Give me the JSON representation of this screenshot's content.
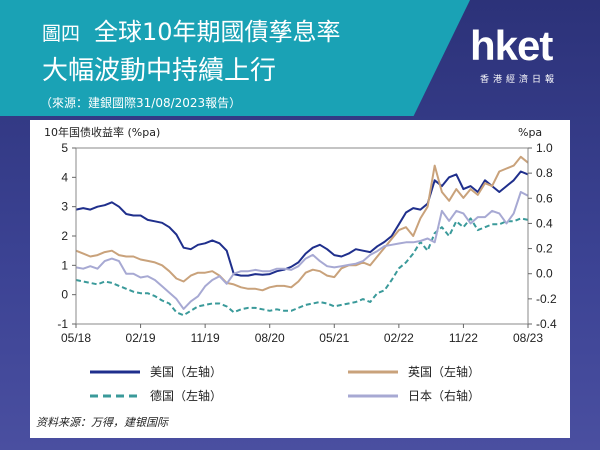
{
  "header": {
    "tag": "圖四",
    "title_line1": "全球10年期國債孳息率",
    "title_line2": "大幅波動中持續上行",
    "source": "（來源：建銀國際31/08/2023報告）"
  },
  "logo": {
    "name": "hket",
    "sub": "香港經濟日報"
  },
  "colors": {
    "us": "#1f2f8c",
    "uk": "#c9a27b",
    "de": "#3a9a9a",
    "jp": "#a7a9d3",
    "banner": "#1aa2b5"
  },
  "chart_data": {
    "type": "line",
    "title": "10年国债收益率 (%pa)",
    "right_axis_title": "%pa",
    "x_ticks": [
      "05/18",
      "02/19",
      "11/19",
      "08/20",
      "05/21",
      "02/22",
      "11/22",
      "08/23"
    ],
    "left_ylim": [
      -1,
      5
    ],
    "left_ticks": [
      "5",
      "4",
      "3",
      "2",
      "1",
      "0",
      "-1"
    ],
    "right_ylim": [
      -0.4,
      1.0
    ],
    "right_ticks": [
      "1.0",
      "0.8",
      "0.6",
      "0.4",
      "0.2",
      "0.0",
      "-0.2",
      "-0.4"
    ],
    "x_range": [
      0,
      63
    ],
    "series": [
      {
        "name": "美国（左轴）",
        "axis": "left",
        "color_key": "us",
        "dash": false,
        "points": [
          [
            0,
            2.9
          ],
          [
            1,
            2.95
          ],
          [
            2,
            2.9
          ],
          [
            3,
            3.0
          ],
          [
            4,
            3.05
          ],
          [
            5,
            3.15
          ],
          [
            6,
            3.0
          ],
          [
            7,
            2.75
          ],
          [
            8,
            2.7
          ],
          [
            9,
            2.7
          ],
          [
            10,
            2.55
          ],
          [
            11,
            2.5
          ],
          [
            12,
            2.45
          ],
          [
            13,
            2.3
          ],
          [
            14,
            2.05
          ],
          [
            15,
            1.6
          ],
          [
            16,
            1.55
          ],
          [
            17,
            1.7
          ],
          [
            18,
            1.75
          ],
          [
            19,
            1.85
          ],
          [
            20,
            1.75
          ],
          [
            21,
            1.5
          ],
          [
            22,
            0.7
          ],
          [
            23,
            0.65
          ],
          [
            24,
            0.65
          ],
          [
            25,
            0.7
          ],
          [
            26,
            0.68
          ],
          [
            27,
            0.7
          ],
          [
            28,
            0.8
          ],
          [
            29,
            0.85
          ],
          [
            30,
            0.95
          ],
          [
            31,
            1.1
          ],
          [
            32,
            1.4
          ],
          [
            33,
            1.6
          ],
          [
            34,
            1.7
          ],
          [
            35,
            1.55
          ],
          [
            36,
            1.35
          ],
          [
            37,
            1.3
          ],
          [
            38,
            1.4
          ],
          [
            39,
            1.55
          ],
          [
            40,
            1.5
          ],
          [
            41,
            1.45
          ],
          [
            42,
            1.65
          ],
          [
            43,
            1.8
          ],
          [
            44,
            2.0
          ],
          [
            45,
            2.4
          ],
          [
            46,
            2.8
          ],
          [
            47,
            2.95
          ],
          [
            48,
            2.9
          ],
          [
            49,
            3.1
          ],
          [
            50,
            3.9
          ],
          [
            51,
            3.7
          ],
          [
            52,
            4.0
          ],
          [
            53,
            4.1
          ],
          [
            54,
            3.6
          ],
          [
            55,
            3.7
          ],
          [
            56,
            3.5
          ],
          [
            57,
            3.9
          ],
          [
            58,
            3.7
          ],
          [
            59,
            3.5
          ],
          [
            60,
            3.7
          ],
          [
            61,
            3.9
          ],
          [
            62,
            4.2
          ],
          [
            63,
            4.1
          ]
        ]
      },
      {
        "name": "英国（左轴）",
        "axis": "left",
        "color_key": "uk",
        "dash": false,
        "points": [
          [
            0,
            1.5
          ],
          [
            1,
            1.4
          ],
          [
            2,
            1.3
          ],
          [
            3,
            1.35
          ],
          [
            4,
            1.45
          ],
          [
            5,
            1.5
          ],
          [
            6,
            1.35
          ],
          [
            7,
            1.3
          ],
          [
            8,
            1.3
          ],
          [
            9,
            1.2
          ],
          [
            10,
            1.15
          ],
          [
            11,
            1.1
          ],
          [
            12,
            1.0
          ],
          [
            13,
            0.8
          ],
          [
            14,
            0.55
          ],
          [
            15,
            0.45
          ],
          [
            16,
            0.65
          ],
          [
            17,
            0.75
          ],
          [
            18,
            0.75
          ],
          [
            19,
            0.8
          ],
          [
            20,
            0.65
          ],
          [
            21,
            0.4
          ],
          [
            22,
            0.35
          ],
          [
            23,
            0.25
          ],
          [
            24,
            0.2
          ],
          [
            25,
            0.2
          ],
          [
            26,
            0.15
          ],
          [
            27,
            0.25
          ],
          [
            28,
            0.3
          ],
          [
            29,
            0.3
          ],
          [
            30,
            0.25
          ],
          [
            31,
            0.45
          ],
          [
            32,
            0.75
          ],
          [
            33,
            0.85
          ],
          [
            34,
            0.8
          ],
          [
            35,
            0.65
          ],
          [
            36,
            0.6
          ],
          [
            37,
            0.9
          ],
          [
            38,
            1.0
          ],
          [
            39,
            1.0
          ],
          [
            40,
            1.1
          ],
          [
            41,
            1.0
          ],
          [
            42,
            1.3
          ],
          [
            43,
            1.6
          ],
          [
            44,
            1.9
          ],
          [
            45,
            2.2
          ],
          [
            46,
            2.3
          ],
          [
            47,
            2.0
          ],
          [
            48,
            2.6
          ],
          [
            49,
            3.0
          ],
          [
            50,
            4.4
          ],
          [
            51,
            3.5
          ],
          [
            52,
            3.2
          ],
          [
            53,
            3.6
          ],
          [
            54,
            3.3
          ],
          [
            55,
            3.6
          ],
          [
            56,
            3.4
          ],
          [
            57,
            3.8
          ],
          [
            58,
            3.7
          ],
          [
            59,
            4.2
          ],
          [
            60,
            4.3
          ],
          [
            61,
            4.4
          ],
          [
            62,
            4.7
          ],
          [
            63,
            4.5
          ]
        ]
      },
      {
        "name": "德国（左轴）",
        "axis": "left",
        "color_key": "de",
        "dash": true,
        "points": [
          [
            0,
            0.5
          ],
          [
            1,
            0.45
          ],
          [
            2,
            0.4
          ],
          [
            3,
            0.35
          ],
          [
            4,
            0.45
          ],
          [
            5,
            0.4
          ],
          [
            6,
            0.3
          ],
          [
            7,
            0.2
          ],
          [
            8,
            0.1
          ],
          [
            9,
            0.05
          ],
          [
            10,
            0.05
          ],
          [
            11,
            -0.05
          ],
          [
            12,
            -0.2
          ],
          [
            13,
            -0.3
          ],
          [
            14,
            -0.6
          ],
          [
            15,
            -0.7
          ],
          [
            16,
            -0.55
          ],
          [
            17,
            -0.4
          ],
          [
            18,
            -0.35
          ],
          [
            19,
            -0.3
          ],
          [
            20,
            -0.3
          ],
          [
            21,
            -0.4
          ],
          [
            22,
            -0.6
          ],
          [
            23,
            -0.5
          ],
          [
            24,
            -0.45
          ],
          [
            25,
            -0.45
          ],
          [
            26,
            -0.5
          ],
          [
            27,
            -0.55
          ],
          [
            28,
            -0.5
          ],
          [
            29,
            -0.55
          ],
          [
            30,
            -0.55
          ],
          [
            31,
            -0.45
          ],
          [
            32,
            -0.35
          ],
          [
            33,
            -0.3
          ],
          [
            34,
            -0.25
          ],
          [
            35,
            -0.3
          ],
          [
            36,
            -0.4
          ],
          [
            37,
            -0.35
          ],
          [
            38,
            -0.3
          ],
          [
            39,
            -0.25
          ],
          [
            40,
            -0.15
          ],
          [
            41,
            -0.25
          ],
          [
            42,
            0.05
          ],
          [
            43,
            0.15
          ],
          [
            44,
            0.5
          ],
          [
            45,
            0.9
          ],
          [
            46,
            1.1
          ],
          [
            47,
            1.4
          ],
          [
            48,
            1.8
          ],
          [
            49,
            1.5
          ],
          [
            50,
            2.1
          ],
          [
            51,
            2.3
          ],
          [
            52,
            2.0
          ],
          [
            53,
            2.5
          ],
          [
            54,
            2.3
          ],
          [
            55,
            2.6
          ],
          [
            56,
            2.2
          ],
          [
            57,
            2.3
          ],
          [
            58,
            2.4
          ],
          [
            59,
            2.4
          ],
          [
            60,
            2.5
          ],
          [
            61,
            2.5
          ],
          [
            62,
            2.6
          ],
          [
            63,
            2.55
          ]
        ]
      },
      {
        "name": "日本（右轴）",
        "axis": "right",
        "color_key": "jp",
        "dash": false,
        "points": [
          [
            0,
            0.05
          ],
          [
            1,
            0.04
          ],
          [
            2,
            0.06
          ],
          [
            3,
            0.04
          ],
          [
            4,
            0.1
          ],
          [
            5,
            0.12
          ],
          [
            6,
            0.1
          ],
          [
            7,
            0.0
          ],
          [
            8,
            0.0
          ],
          [
            9,
            -0.03
          ],
          [
            10,
            -0.02
          ],
          [
            11,
            -0.05
          ],
          [
            12,
            -0.1
          ],
          [
            13,
            -0.15
          ],
          [
            14,
            -0.2
          ],
          [
            15,
            -0.28
          ],
          [
            16,
            -0.22
          ],
          [
            17,
            -0.18
          ],
          [
            18,
            -0.1
          ],
          [
            19,
            -0.05
          ],
          [
            20,
            -0.02
          ],
          [
            21,
            -0.08
          ],
          [
            22,
            0.0
          ],
          [
            23,
            0.02
          ],
          [
            24,
            0.02
          ],
          [
            25,
            0.03
          ],
          [
            26,
            0.02
          ],
          [
            27,
            0.02
          ],
          [
            28,
            0.04
          ],
          [
            29,
            0.04
          ],
          [
            30,
            0.03
          ],
          [
            31,
            0.06
          ],
          [
            32,
            0.12
          ],
          [
            33,
            0.15
          ],
          [
            34,
            0.1
          ],
          [
            35,
            0.06
          ],
          [
            36,
            0.05
          ],
          [
            37,
            0.06
          ],
          [
            38,
            0.07
          ],
          [
            39,
            0.08
          ],
          [
            40,
            0.1
          ],
          [
            41,
            0.15
          ],
          [
            42,
            0.18
          ],
          [
            43,
            0.22
          ],
          [
            44,
            0.23
          ],
          [
            45,
            0.24
          ],
          [
            46,
            0.25
          ],
          [
            47,
            0.25
          ],
          [
            48,
            0.26
          ],
          [
            49,
            0.28
          ],
          [
            50,
            0.25
          ],
          [
            51,
            0.5
          ],
          [
            52,
            0.42
          ],
          [
            53,
            0.5
          ],
          [
            54,
            0.48
          ],
          [
            55,
            0.4
          ],
          [
            56,
            0.45
          ],
          [
            57,
            0.45
          ],
          [
            58,
            0.5
          ],
          [
            59,
            0.48
          ],
          [
            60,
            0.4
          ],
          [
            61,
            0.48
          ],
          [
            62,
            0.65
          ],
          [
            63,
            0.62
          ]
        ]
      }
    ],
    "legend": [
      {
        "label": "美国（左轴）",
        "color_key": "us",
        "dash": false
      },
      {
        "label": "英国（左轴）",
        "color_key": "uk",
        "dash": false
      },
      {
        "label": "德国（左轴）",
        "color_key": "de",
        "dash": true
      },
      {
        "label": "日本（右轴）",
        "color_key": "jp",
        "dash": false
      }
    ],
    "source_note": "资料来源：万得，建银国际"
  }
}
